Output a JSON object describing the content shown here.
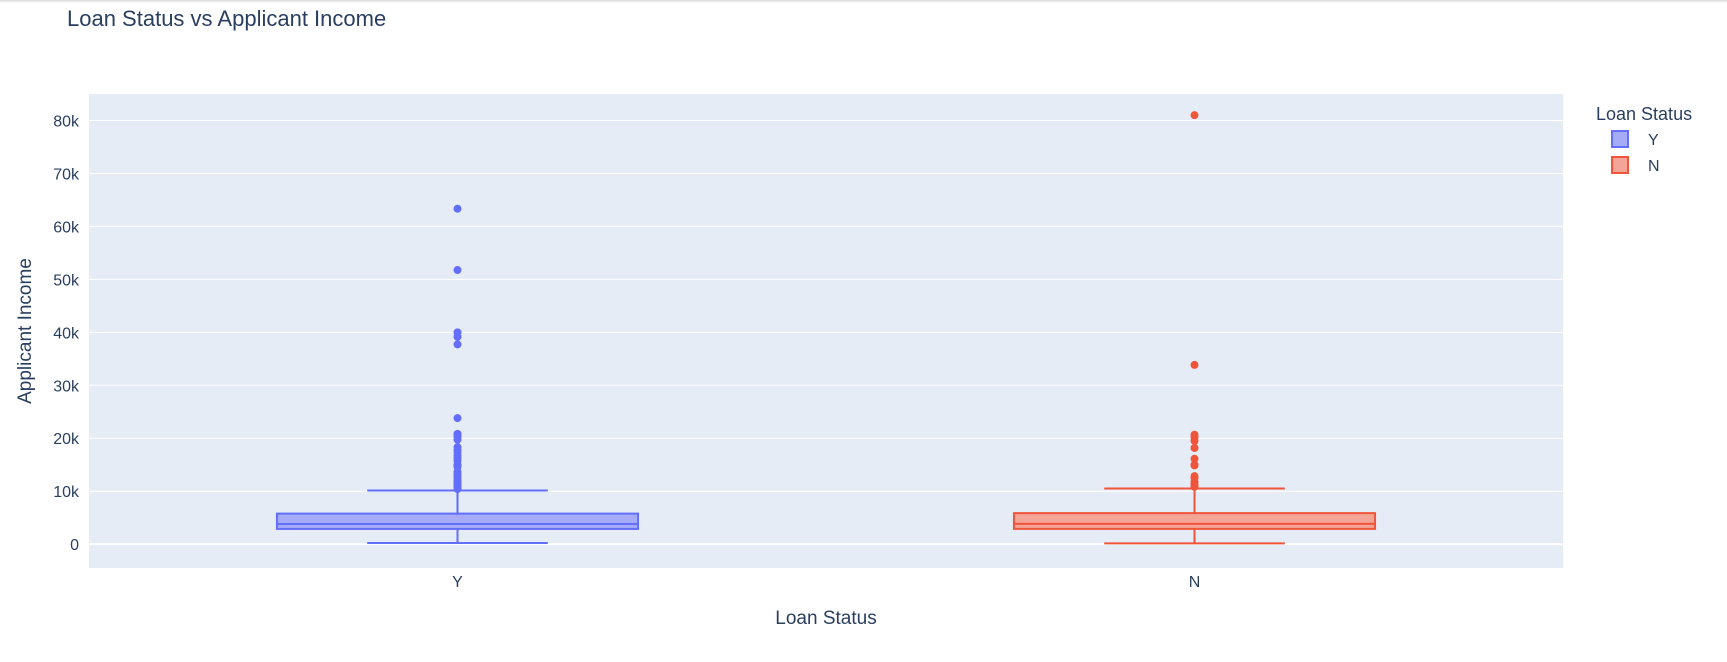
{
  "chart_data": {
    "type": "box",
    "title": "Loan Status vs Applicant Income",
    "xlabel": "Loan Status",
    "ylabel": "Applicant Income",
    "ylim": [
      -4500,
      85000
    ],
    "yticks": [
      0,
      10000,
      20000,
      30000,
      40000,
      50000,
      60000,
      70000,
      80000
    ],
    "ytick_labels": [
      "0",
      "10k",
      "20k",
      "30k",
      "40k",
      "50k",
      "60k",
      "70k",
      "80k"
    ],
    "categories": [
      "Y",
      "N"
    ],
    "grid": true,
    "legend": {
      "title": "Loan Status",
      "placement": "top-right"
    },
    "series": [
      {
        "name": "Y",
        "category": "Y",
        "color": "#636efa",
        "fill": "#a5abf7",
        "min": 210,
        "q1": 2877,
        "median": 3812,
        "q3": 5771,
        "max": 10139,
        "outliers": [
          63337,
          51763,
          39999,
          39147,
          37719,
          23803,
          20833,
          20667,
          20233,
          19730,
          18333,
          17763,
          17263,
          16692,
          16250,
          15759,
          14999,
          14583,
          14880,
          13650,
          13262,
          12876,
          12500,
          12000,
          11757,
          11500,
          11250,
          11000,
          10833,
          10750,
          10408
        ]
      },
      {
        "name": "N",
        "category": "N",
        "color": "#ef553b",
        "fill": "#f4a597",
        "min": 150,
        "q1": 2885,
        "median": 3833,
        "q3": 5861,
        "max": 10513,
        "outliers": [
          81000,
          33846,
          20667,
          20166,
          19484,
          18165,
          16120,
          15000,
          14866,
          12841,
          12500,
          11757,
          11417,
          11146,
          10833
        ]
      }
    ]
  }
}
